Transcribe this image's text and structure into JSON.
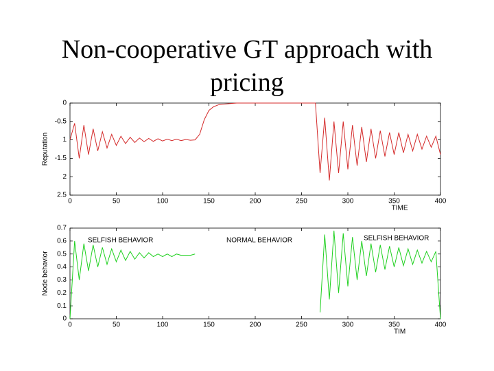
{
  "title": "Non-cooperative GT approach with pricing",
  "chart_data": [
    {
      "type": "line",
      "ylabel": "Reputation",
      "xlabel": "TIME",
      "color": "#d42a2a",
      "xlim": [
        0,
        400
      ],
      "xticks": [
        0,
        50,
        100,
        150,
        200,
        250,
        300,
        350,
        400
      ],
      "ylim": [
        -2.5,
        0
      ],
      "yticks": [
        0,
        -0.5,
        {
          "value": -1,
          "label": "1"
        },
        -1.5,
        {
          "value": -2,
          "label": "2"
        },
        {
          "value": -2.5,
          "label": "2.5"
        }
      ],
      "x": [
        0,
        5,
        10,
        15,
        20,
        25,
        30,
        35,
        40,
        45,
        50,
        55,
        60,
        65,
        70,
        75,
        80,
        85,
        90,
        95,
        100,
        105,
        110,
        115,
        120,
        125,
        130,
        135,
        140,
        145,
        150,
        155,
        160,
        165,
        170,
        175,
        180,
        185,
        190,
        195,
        200,
        205,
        210,
        215,
        220,
        225,
        230,
        235,
        240,
        245,
        250,
        255,
        260,
        265,
        270,
        275,
        280,
        285,
        290,
        295,
        300,
        305,
        310,
        315,
        320,
        325,
        330,
        335,
        340,
        345,
        350,
        355,
        360,
        365,
        370,
        375,
        380,
        385,
        390,
        395,
        400
      ],
      "values": [
        -1.0,
        -0.55,
        -1.5,
        -0.6,
        -1.4,
        -0.7,
        -1.3,
        -0.78,
        -1.22,
        -0.85,
        -1.15,
        -0.9,
        -1.1,
        -0.93,
        -1.07,
        -0.95,
        -1.05,
        -0.96,
        -1.04,
        -0.97,
        -1.03,
        -0.98,
        -1.02,
        -0.98,
        -1.02,
        -0.99,
        -1.01,
        -1.0,
        -0.85,
        -0.45,
        -0.2,
        -0.1,
        -0.05,
        -0.03,
        -0.02,
        -0.01,
        0,
        0,
        0,
        0,
        0,
        0,
        0,
        0,
        0,
        0,
        0,
        0,
        0,
        0,
        0,
        0,
        0,
        0,
        -1.9,
        -0.4,
        -2.1,
        -0.5,
        -1.9,
        -0.5,
        -1.8,
        -0.6,
        -1.7,
        -0.65,
        -1.6,
        -0.7,
        -1.5,
        -0.75,
        -1.45,
        -0.8,
        -1.4,
        -0.8,
        -1.35,
        -0.85,
        -1.3,
        -0.85,
        -1.25,
        -0.9,
        -1.2,
        -0.9,
        -1.4
      ]
    },
    {
      "type": "line",
      "ylabel": "Node behavior",
      "xlabel": "TIM",
      "color": "#1fd01f",
      "annotations": [
        "SELFISH BEHAVIOR",
        "NORMAL BEHAVIOR",
        "SELFISH BEHAVIOR"
      ],
      "xlim": [
        0,
        400
      ],
      "xticks": [
        0,
        50,
        100,
        150,
        200,
        250,
        300,
        350,
        400
      ],
      "ylim": [
        0,
        0.7
      ],
      "yticks": [
        0,
        0.1,
        0.2,
        0.3,
        0.4,
        0.5,
        0.6,
        0.7
      ],
      "x": [
        0,
        5,
        10,
        15,
        20,
        25,
        30,
        35,
        40,
        45,
        50,
        55,
        60,
        65,
        70,
        75,
        80,
        85,
        90,
        95,
        100,
        105,
        110,
        115,
        120,
        125,
        130,
        135,
        140,
        145,
        150,
        155,
        160,
        165,
        170,
        175,
        180,
        185,
        190,
        195,
        200,
        205,
        210,
        215,
        220,
        225,
        230,
        235,
        240,
        245,
        250,
        255,
        260,
        265,
        270,
        275,
        280,
        285,
        290,
        295,
        300,
        305,
        310,
        315,
        320,
        325,
        330,
        335,
        340,
        345,
        350,
        355,
        360,
        365,
        370,
        375,
        380,
        385,
        390,
        395,
        400
      ],
      "values": [
        0,
        0.6,
        0.3,
        0.58,
        0.37,
        0.57,
        0.4,
        0.55,
        0.42,
        0.54,
        0.44,
        0.53,
        0.45,
        0.52,
        0.46,
        0.51,
        0.47,
        0.51,
        0.48,
        0.5,
        0.48,
        0.5,
        0.48,
        0.5,
        0.49,
        0.49,
        0.49,
        0.5,
        null,
        null,
        null,
        null,
        null,
        null,
        null,
        null,
        null,
        null,
        null,
        null,
        null,
        null,
        null,
        null,
        null,
        null,
        null,
        null,
        null,
        null,
        null,
        null,
        null,
        null,
        0.05,
        0.65,
        0.15,
        0.68,
        0.2,
        0.66,
        0.25,
        0.63,
        0.3,
        0.6,
        0.33,
        0.58,
        0.36,
        0.57,
        0.38,
        0.56,
        0.4,
        0.55,
        0.41,
        0.54,
        0.42,
        0.53,
        0.43,
        0.52,
        0.44,
        0.52,
        0.0
      ]
    }
  ]
}
